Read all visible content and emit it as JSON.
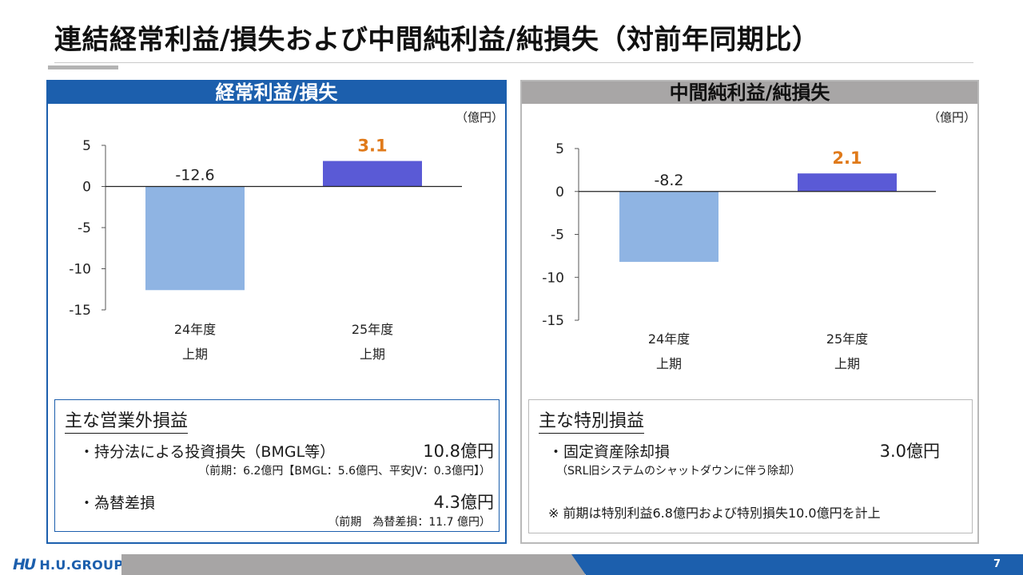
{
  "page": {
    "title": "連結経常利益/損失および中間純利益/純損失（対前年同期比）",
    "page_number": "7"
  },
  "left_panel": {
    "header": "経常利益/損失",
    "unit": "（億円）",
    "box": {
      "title": "主な営業外損益",
      "items": [
        {
          "label": "・持分法による投資損失（BMGL等）",
          "value": "10.8億円",
          "note": "（前期：6.2億円【BMGL：5.6億円、平安JV：0.3億円】）"
        },
        {
          "label": "・為替差損",
          "value": "4.3億円",
          "note": "（前期　為替差損：11.7 億円）"
        }
      ]
    }
  },
  "right_panel": {
    "header": "中間純利益/純損失",
    "unit": "（億円）",
    "box": {
      "title": "主な特別損益",
      "items": [
        {
          "label": "・固定資産除却損",
          "value": "3.0億円",
          "note": "（SRL旧システムのシャットダウンに伴う除却）"
        }
      ],
      "remark": "※ 前期は特別利益6.8億円および特別損失10.0億円を計上"
    }
  },
  "chart_data": [
    {
      "type": "bar",
      "title": "経常利益/損失",
      "unit": "（億円）",
      "categories": [
        [
          "24年度",
          "上期"
        ],
        [
          "25年度",
          "上期"
        ]
      ],
      "values": [
        -12.6,
        3.1
      ],
      "value_labels": [
        "-12.6",
        "3.1"
      ],
      "ylim": [
        -15,
        5
      ],
      "yticks": [
        5,
        0,
        -5,
        -10,
        -15
      ],
      "colors": [
        "#8fb4e3",
        "#5a5ad6"
      ],
      "label_colors": [
        "#222222",
        "#e07a1a"
      ]
    },
    {
      "type": "bar",
      "title": "中間純利益/純損失",
      "unit": "（億円）",
      "categories": [
        [
          "24年度",
          "上期"
        ],
        [
          "25年度",
          "上期"
        ]
      ],
      "values": [
        -8.2,
        2.1
      ],
      "value_labels": [
        "-8.2",
        "2.1"
      ],
      "ylim": [
        -15,
        5
      ],
      "yticks": [
        5,
        0,
        -5,
        -10,
        -15
      ],
      "colors": [
        "#8fb4e3",
        "#5a5ad6"
      ],
      "label_colors": [
        "#222222",
        "#e07a1a"
      ]
    }
  ],
  "footer": {
    "logo_mark": "HU",
    "logo_text": "H.U.GROUP"
  }
}
